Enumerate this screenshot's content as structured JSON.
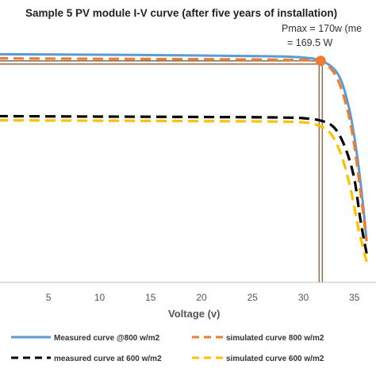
{
  "chart_data": {
    "type": "line",
    "title": "Sample 5 PV module I-V curve (after five years of installation)",
    "xlabel": "Voltage (v)",
    "ylabel": "",
    "xlim": [
      0,
      36
    ],
    "xticks": [
      5,
      10,
      15,
      20,
      25,
      30,
      35
    ],
    "xtick_labels": [
      "5",
      "10",
      "15",
      "20",
      "25",
      "30",
      "35"
    ],
    "grid": false,
    "legend_position": "bottom",
    "annotations": [
      "Pmax = 170w (me",
      "= 169.5 W"
    ],
    "mpp": {
      "x": 31.7,
      "y": 5.37
    },
    "series": [
      {
        "name": "Measured curve @800 w/m2",
        "color": "#5b9bd5",
        "dash": "solid",
        "x": [
          0,
          10,
          20,
          27,
          30,
          32,
          33.5,
          34.5,
          35.2,
          35.8,
          36.2
        ],
        "y": [
          5.53,
          5.52,
          5.5,
          5.48,
          5.45,
          5.35,
          5.0,
          4.2,
          3.2,
          2.0,
          1.0
        ]
      },
      {
        "name": "simulated curve 800 w/m2",
        "color": "#ed7d31",
        "dash": "dashed",
        "x": [
          0,
          10,
          20,
          27,
          30,
          31.7,
          33.2,
          34.3,
          35.0,
          35.7,
          36.2
        ],
        "y": [
          5.43,
          5.42,
          5.41,
          5.4,
          5.39,
          5.37,
          5.0,
          4.2,
          3.3,
          2.0,
          1.0
        ]
      },
      {
        "name": "measured curve at 600 w/m2",
        "color": "#000000",
        "dash": "dashed",
        "x": [
          0,
          10,
          20,
          27,
          30,
          32,
          33.2,
          34.2,
          35.0,
          35.6,
          36.2
        ],
        "y": [
          4.03,
          4.02,
          4.01,
          4.0,
          3.98,
          3.9,
          3.7,
          3.2,
          2.5,
          1.5,
          0.7
        ]
      },
      {
        "name": "simulated curve 600 w/m2",
        "color": "#ffc000",
        "dash": "dashed",
        "x": [
          0,
          10,
          20,
          27,
          30,
          31.5,
          32.7,
          33.7,
          34.6,
          35.4,
          36.2
        ],
        "y": [
          3.93,
          3.92,
          3.91,
          3.9,
          3.88,
          3.8,
          3.6,
          3.1,
          2.3,
          1.3,
          0.5
        ]
      }
    ]
  }
}
